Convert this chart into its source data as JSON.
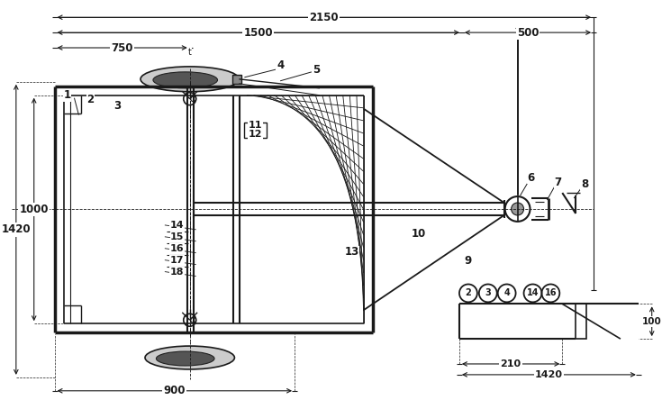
{
  "bg_color": "#ffffff",
  "line_color": "#1a1a1a",
  "fig_width": 7.35,
  "fig_height": 4.54
}
